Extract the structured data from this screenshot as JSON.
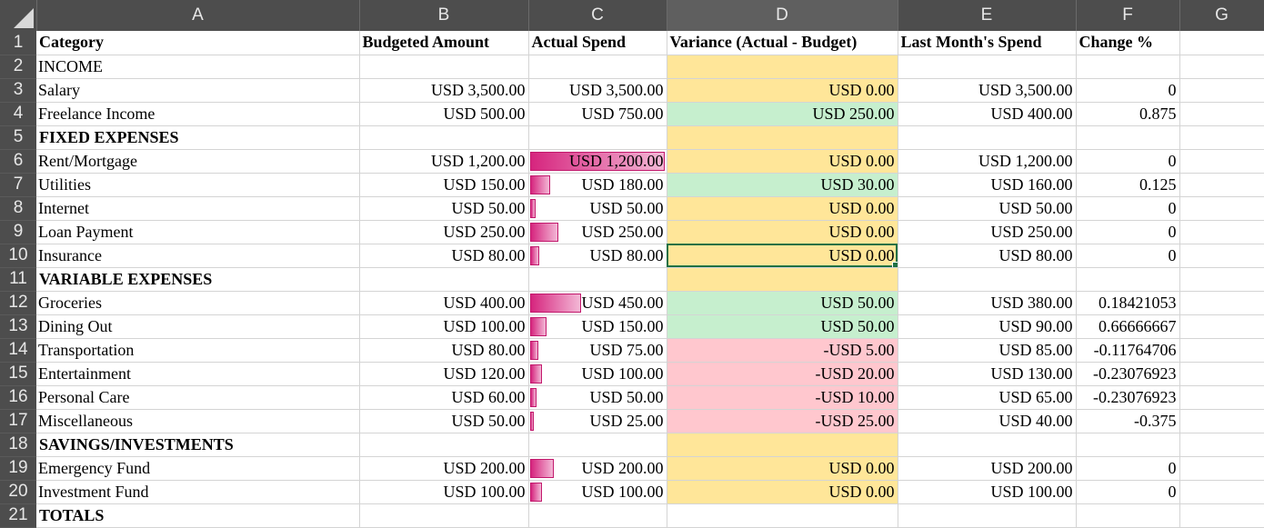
{
  "columns": [
    "A",
    "B",
    "C",
    "D",
    "E",
    "F",
    "G"
  ],
  "headers": {
    "category": "Category",
    "budgeted": "Budgeted Amount",
    "actual": "Actual Spend",
    "variance": "Variance (Actual - Budget)",
    "last_month": "Last Month's Spend",
    "change": "Change %"
  },
  "rows": {
    "r2": {
      "num": "2",
      "category": "INCOME"
    },
    "r3": {
      "num": "3",
      "category": "Salary",
      "budgeted": "USD 3,500.00",
      "actual": "USD 3,500.00",
      "variance": "USD 0.00",
      "last_month": "USD 3,500.00",
      "change": "0"
    },
    "r4": {
      "num": "4",
      "category": "Freelance Income",
      "budgeted": "USD 500.00",
      "actual": "USD 750.00",
      "variance": "USD 250.00",
      "last_month": "USD 400.00",
      "change": "0.875"
    },
    "r5": {
      "num": "5",
      "category": "FIXED EXPENSES"
    },
    "r6": {
      "num": "6",
      "category": "Rent/Mortgage",
      "budgeted": "USD 1,200.00",
      "actual": "USD 1,200.00",
      "variance": "USD 0.00",
      "last_month": "USD 1,200.00",
      "change": "0"
    },
    "r7": {
      "num": "7",
      "category": "Utilities",
      "budgeted": "USD 150.00",
      "actual": "USD 180.00",
      "variance": "USD 30.00",
      "last_month": "USD 160.00",
      "change": "0.125"
    },
    "r8": {
      "num": "8",
      "category": "Internet",
      "budgeted": "USD 50.00",
      "actual": "USD 50.00",
      "variance": "USD 0.00",
      "last_month": "USD 50.00",
      "change": "0"
    },
    "r9": {
      "num": "9",
      "category": "Loan Payment",
      "budgeted": "USD 250.00",
      "actual": "USD 250.00",
      "variance": "USD 0.00",
      "last_month": "USD 250.00",
      "change": "0"
    },
    "r10": {
      "num": "10",
      "category": "Insurance",
      "budgeted": "USD 80.00",
      "actual": "USD 80.00",
      "variance": "USD 0.00",
      "last_month": "USD 80.00",
      "change": "0"
    },
    "r11": {
      "num": "11",
      "category": "VARIABLE EXPENSES"
    },
    "r12": {
      "num": "12",
      "category": "Groceries",
      "budgeted": "USD 400.00",
      "actual": "USD 450.00",
      "variance": "USD 50.00",
      "last_month": "USD 380.00",
      "change": "0.18421053"
    },
    "r13": {
      "num": "13",
      "category": "Dining Out",
      "budgeted": "USD 100.00",
      "actual": "USD 150.00",
      "variance": "USD 50.00",
      "last_month": "USD 90.00",
      "change": "0.66666667"
    },
    "r14": {
      "num": "14",
      "category": "Transportation",
      "budgeted": "USD 80.00",
      "actual": "USD 75.00",
      "variance": "-USD 5.00",
      "last_month": "USD 85.00",
      "change": "-0.11764706"
    },
    "r15": {
      "num": "15",
      "category": "Entertainment",
      "budgeted": "USD 120.00",
      "actual": "USD 100.00",
      "variance": "-USD 20.00",
      "last_month": "USD 130.00",
      "change": "-0.23076923"
    },
    "r16": {
      "num": "16",
      "category": "Personal Care",
      "budgeted": "USD 60.00",
      "actual": "USD 50.00",
      "variance": "-USD 10.00",
      "last_month": "USD 65.00",
      "change": "-0.23076923"
    },
    "r17": {
      "num": "17",
      "category": "Miscellaneous",
      "budgeted": "USD 50.00",
      "actual": "USD 25.00",
      "variance": "-USD 25.00",
      "last_month": "USD 40.00",
      "change": "-0.375"
    },
    "r18": {
      "num": "18",
      "category": "SAVINGS/INVESTMENTS"
    },
    "r19": {
      "num": "19",
      "category": "Emergency Fund",
      "budgeted": "USD 200.00",
      "actual": "USD 200.00",
      "variance": "USD 0.00",
      "last_month": "USD 200.00",
      "change": "0"
    },
    "r20": {
      "num": "20",
      "category": "Investment Fund",
      "budgeted": "USD 100.00",
      "actual": "USD 100.00",
      "variance": "USD 0.00",
      "last_month": "USD 100.00",
      "change": "0"
    },
    "r21": {
      "num": "21",
      "category": "TOTALS"
    }
  },
  "header_row_num": "1",
  "selected_cell": "D10",
  "colors": {
    "header_bg": "#4d4d4d",
    "neutral_fill": "#ffe699",
    "neutral_text": "#9c6500",
    "positive_fill": "#c6efce",
    "positive_text": "#006100",
    "negative_fill": "#ffc7ce",
    "negative_text": "#9c0006",
    "databar": "#d6257e",
    "selection": "#1e7145"
  }
}
